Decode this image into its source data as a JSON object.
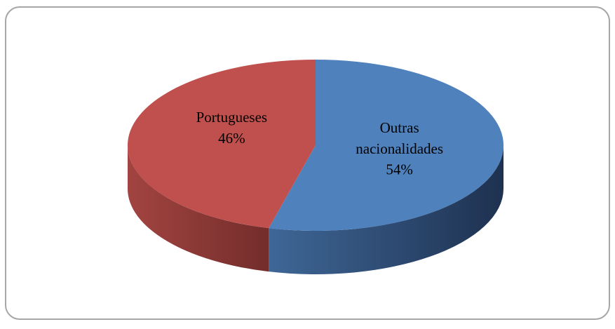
{
  "chart_data": {
    "type": "pie",
    "categories": [
      "Outras nacionalidades",
      "Portugueses"
    ],
    "values": [
      54,
      46
    ],
    "value_labels": [
      "54%",
      "46%"
    ],
    "colors": [
      "#4f81bd",
      "#c0504d"
    ],
    "side_colors": [
      [
        "#3f6797",
        "#1e3150"
      ],
      [
        "#a24441",
        "#732d2b"
      ]
    ]
  }
}
